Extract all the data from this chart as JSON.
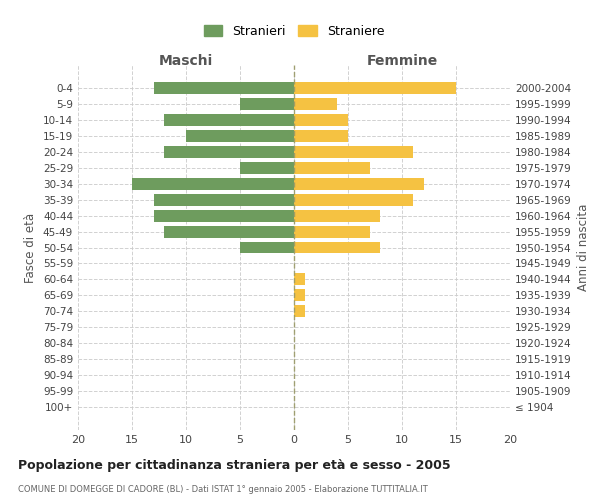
{
  "age_groups": [
    "0-4",
    "5-9",
    "10-14",
    "15-19",
    "20-24",
    "25-29",
    "30-34",
    "35-39",
    "40-44",
    "45-49",
    "50-54",
    "55-59",
    "60-64",
    "65-69",
    "70-74",
    "75-79",
    "80-84",
    "85-89",
    "90-94",
    "95-99",
    "100+"
  ],
  "birth_years": [
    "2000-2004",
    "1995-1999",
    "1990-1994",
    "1985-1989",
    "1980-1984",
    "1975-1979",
    "1970-1974",
    "1965-1969",
    "1960-1964",
    "1955-1959",
    "1950-1954",
    "1945-1949",
    "1940-1944",
    "1935-1939",
    "1930-1934",
    "1925-1929",
    "1920-1924",
    "1915-1919",
    "1910-1914",
    "1905-1909",
    "≤ 1904"
  ],
  "maschi": [
    13,
    5,
    12,
    10,
    12,
    5,
    15,
    13,
    13,
    12,
    5,
    0,
    0,
    0,
    0,
    0,
    0,
    0,
    0,
    0,
    0
  ],
  "femmine": [
    15,
    4,
    5,
    5,
    11,
    7,
    12,
    11,
    8,
    7,
    8,
    0,
    1,
    1,
    1,
    0,
    0,
    0,
    0,
    0,
    0
  ],
  "color_maschi": "#6e9c5e",
  "color_femmine": "#f5c242",
  "title": "Popolazione per cittadinanza straniera per età e sesso - 2005",
  "subtitle": "COMUNE DI DOMEGGE DI CADORE (BL) - Dati ISTAT 1° gennaio 2005 - Elaborazione TUTTITALIA.IT",
  "xlabel_left": "Maschi",
  "xlabel_right": "Femmine",
  "ylabel_left": "Fasce di età",
  "ylabel_right": "Anni di nascita",
  "legend_maschi": "Stranieri",
  "legend_femmine": "Straniere",
  "xlim": 20,
  "background_color": "#ffffff",
  "grid_color": "#cccccc"
}
